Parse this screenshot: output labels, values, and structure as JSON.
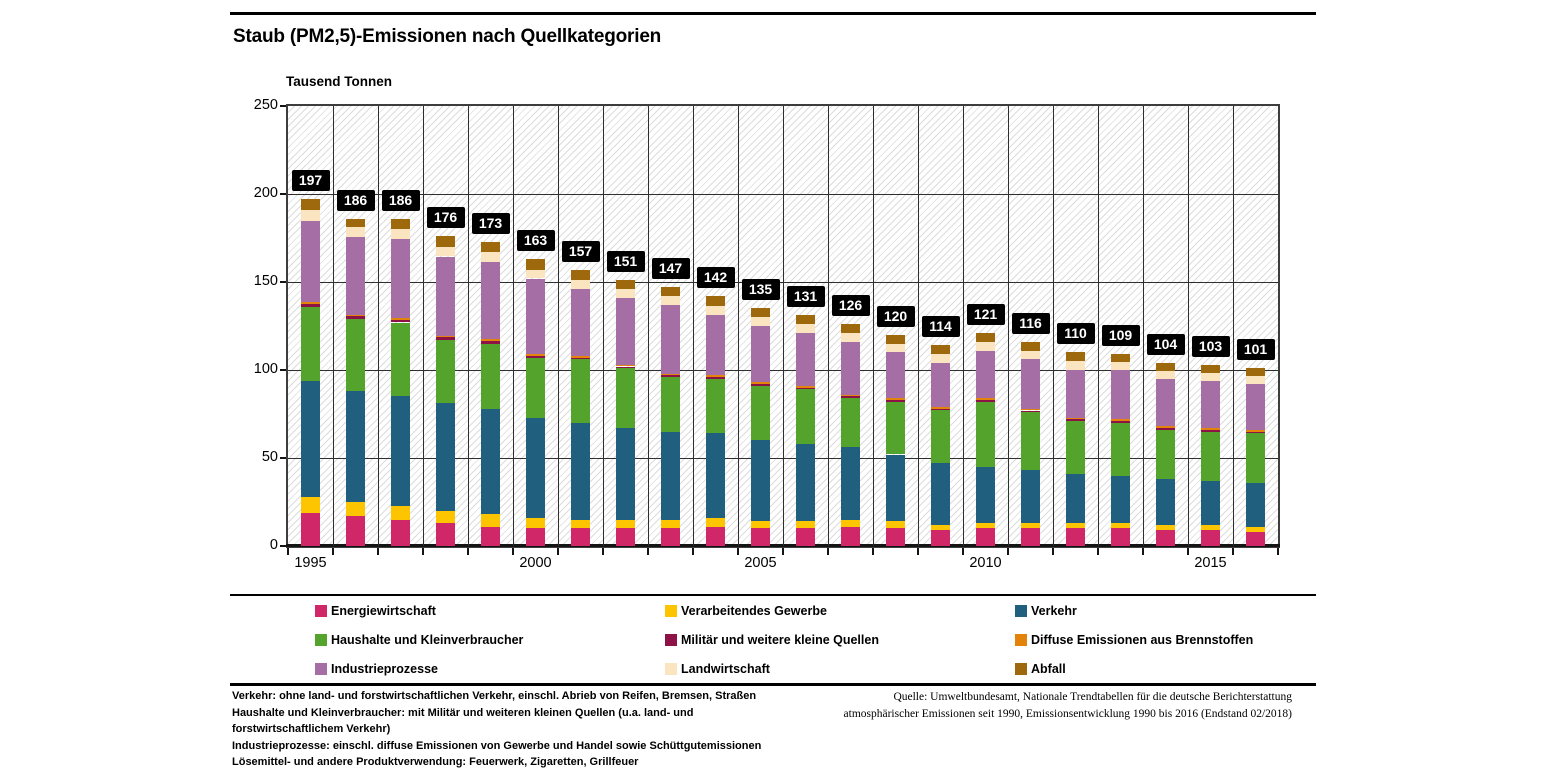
{
  "header": {
    "title": "Staub (PM2,5)-Emissionen nach Quellkategorien",
    "unit_label": "Tausend Tonnen"
  },
  "chart_data": {
    "type": "bar",
    "stacked": true,
    "title": "Staub (PM2,5)-Emissionen nach Quellkategorien",
    "xlabel": "",
    "ylabel": "Tausend Tonnen",
    "ylim": [
      0,
      250
    ],
    "yticks": [
      0,
      50,
      100,
      150,
      200,
      250
    ],
    "grid": true,
    "legend_position": "bottom",
    "background_hatch": "diagonal",
    "label_badge_bg": "#000000",
    "label_badge_color": "#ffffff",
    "years": [
      1995,
      1996,
      1997,
      1998,
      1999,
      2000,
      2001,
      2002,
      2003,
      2004,
      2005,
      2006,
      2007,
      2008,
      2009,
      2010,
      2011,
      2012,
      2013,
      2014,
      2015,
      2016
    ],
    "x_axis_labeled_years": [
      1995,
      2000,
      2005,
      2010,
      2015
    ],
    "totals": [
      197,
      186,
      186,
      176,
      173,
      163,
      157,
      151,
      147,
      142,
      135,
      131,
      126,
      120,
      114,
      121,
      116,
      110,
      109,
      104,
      103,
      101
    ],
    "series": [
      {
        "name": "Energiewirtschaft",
        "color": "#d02768",
        "values": [
          19,
          17,
          15,
          13,
          11,
          10,
          10,
          10,
          10,
          11,
          10,
          10,
          11,
          10,
          9,
          10,
          10,
          10,
          10,
          9,
          9,
          8
        ]
      },
      {
        "name": "Verarbeitendes Gewerbe",
        "color": "#fdc500",
        "values": [
          9,
          8,
          8,
          7,
          7,
          6,
          5,
          5,
          5,
          5,
          4,
          4,
          4,
          4,
          3,
          3,
          3,
          3,
          3,
          3,
          3,
          3
        ]
      },
      {
        "name": "Verkehr",
        "color": "#20607e",
        "values": [
          66,
          63,
          62,
          61,
          60,
          57,
          55,
          52,
          50,
          48,
          46,
          44,
          41,
          38,
          35,
          32,
          30,
          28,
          27,
          26,
          25,
          25
        ]
      },
      {
        "name": "Haushalte und Kleinverbraucher",
        "color": "#53a32d",
        "values": [
          42,
          41,
          42,
          36,
          37,
          34,
          36,
          34,
          31,
          31,
          31,
          31,
          28,
          30,
          30,
          37,
          33,
          30,
          30,
          28,
          28,
          28
        ]
      },
      {
        "name": "Militär und weitere kleine Quellen",
        "color": "#8d1245",
        "values": [
          1.5,
          1.5,
          1.5,
          1.5,
          1.5,
          1,
          1,
          1,
          1,
          1,
          1,
          1,
          1,
          1,
          1,
          1,
          1,
          1,
          1,
          1,
          1,
          1
        ]
      },
      {
        "name": "Diffuse Emissionen aus Brennstoffen",
        "color": "#e4830a",
        "values": [
          1,
          1,
          1,
          1,
          1,
          1,
          1,
          1,
          1,
          1,
          1,
          1,
          1,
          1,
          1,
          1,
          1,
          1,
          1,
          1,
          1,
          1
        ]
      },
      {
        "name": "Industrieprozesse",
        "color": "#a56fa5",
        "values": [
          46,
          44,
          45,
          45,
          44,
          43,
          38,
          38,
          39,
          34,
          32,
          30,
          30,
          26,
          25,
          27,
          28,
          27,
          28,
          27,
          27,
          26
        ]
      },
      {
        "name": "Landwirtschaft",
        "color": "#fbe4c0",
        "values": [
          6.5,
          5.5,
          5.5,
          5.5,
          5.5,
          5,
          5,
          5,
          5,
          5.5,
          5,
          5,
          5,
          5,
          5,
          5,
          5,
          5,
          4.5,
          4.5,
          4.5,
          4.5
        ]
      },
      {
        "name": "Abfall",
        "color": "#9e690c",
        "values": [
          6,
          5,
          6,
          6,
          6,
          6,
          6,
          5,
          5,
          5.5,
          5,
          5,
          5,
          5,
          5,
          5,
          5,
          5,
          4.5,
          4.5,
          4.5,
          4.5
        ]
      }
    ]
  },
  "legend": {
    "columns": [
      [
        {
          "label": "Energiewirtschaft",
          "color": "#d02768"
        },
        {
          "label": "Haushalte und Kleinverbraucher",
          "color": "#53a32d"
        },
        {
          "label": "Industrieprozesse",
          "color": "#a56fa5"
        }
      ],
      [
        {
          "label": "Verarbeitendes Gewerbe",
          "color": "#fdc500"
        },
        {
          "label": "Militär und weitere kleine Quellen",
          "color": "#8d1245"
        },
        {
          "label": "Landwirtschaft",
          "color": "#fbe4c0"
        }
      ],
      [
        {
          "label": "Verkehr",
          "color": "#20607e"
        },
        {
          "label": "Diffuse Emissionen aus Brennstoffen",
          "color": "#e4830a"
        },
        {
          "label": "Abfall",
          "color": "#9e690c"
        }
      ]
    ]
  },
  "footnotes": {
    "left_lines": [
      "Verkehr: ohne land- und forstwirtschaftlichen Verkehr, einschl. Abrieb von Reifen, Bremsen, Straßen",
      "Haushalte und Kleinverbraucher: mit Militär und weiteren kleinen Quellen (u.a. land- und",
      "forstwirtschaftlichem Verkehr)",
      "Industrieprozesse: einschl. diffuse Emissionen von Gewerbe und Handel sowie Schüttgutemissionen",
      "Lösemittel- und andere Produktverwendung: Feuerwerk, Zigaretten, Grillfeuer"
    ],
    "source_lines": [
      "Quelle: Umweltbundesamt, Nationale Trendtabellen für die deutsche Berichterstattung",
      "atmosphärischer Emissionen seit 1990, Emissionsentwicklung 1990 bis 2016 (Endstand 02/2018)"
    ]
  }
}
